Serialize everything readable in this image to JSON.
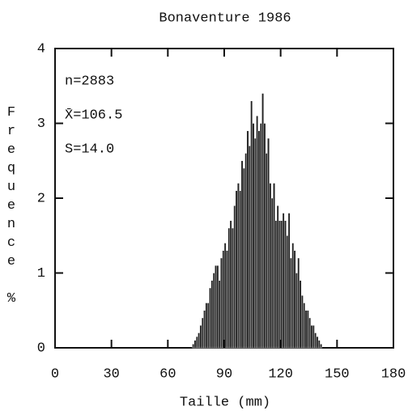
{
  "chart_data": {
    "type": "histogram",
    "title": "Bonaventure 1986",
    "xlabel": "Taille (mm)",
    "ylabel": "Frequence %",
    "annotations": [
      "n=2883",
      "X̄=106.5",
      "S=14.0"
    ],
    "bins": [
      73,
      74,
      75,
      76,
      77,
      78,
      79,
      80,
      81,
      82,
      83,
      84,
      85,
      86,
      87,
      88,
      89,
      90,
      91,
      92,
      93,
      94,
      95,
      96,
      97,
      98,
      99,
      100,
      101,
      102,
      103,
      104,
      105,
      106,
      107,
      108,
      109,
      110,
      111,
      112,
      113,
      114,
      115,
      116,
      117,
      118,
      119,
      120,
      121,
      122,
      123,
      124,
      125,
      126,
      127,
      128,
      129,
      130,
      131,
      132,
      133,
      134,
      135,
      136,
      137,
      138,
      139,
      140,
      141,
      142
    ],
    "values": [
      0.05,
      0.1,
      0.15,
      0.2,
      0.3,
      0.4,
      0.5,
      0.6,
      0.6,
      0.8,
      0.9,
      1.0,
      1.1,
      1.1,
      0.9,
      1.2,
      1.3,
      1.4,
      1.3,
      1.6,
      1.7,
      1.6,
      1.9,
      2.1,
      2.2,
      2.1,
      2.5,
      2.4,
      2.6,
      2.9,
      2.7,
      3.3,
      3.0,
      2.8,
      3.1,
      2.9,
      3.0,
      3.4,
      3.0,
      2.6,
      2.8,
      2.2,
      2.0,
      2.2,
      1.7,
      1.9,
      1.7,
      1.7,
      1.8,
      1.7,
      1.5,
      1.8,
      1.2,
      1.4,
      1.3,
      1.0,
      1.2,
      0.9,
      0.7,
      0.6,
      0.5,
      0.5,
      0.4,
      0.3,
      0.3,
      0.2,
      0.15,
      0.1,
      0.05
    ],
    "color": "#222",
    "xlim": [
      0,
      180
    ],
    "xticks": [
      0,
      30,
      60,
      90,
      120,
      150,
      180
    ],
    "ylim": [
      0,
      4
    ],
    "yticks": [
      0,
      1,
      2,
      3,
      4
    ]
  }
}
